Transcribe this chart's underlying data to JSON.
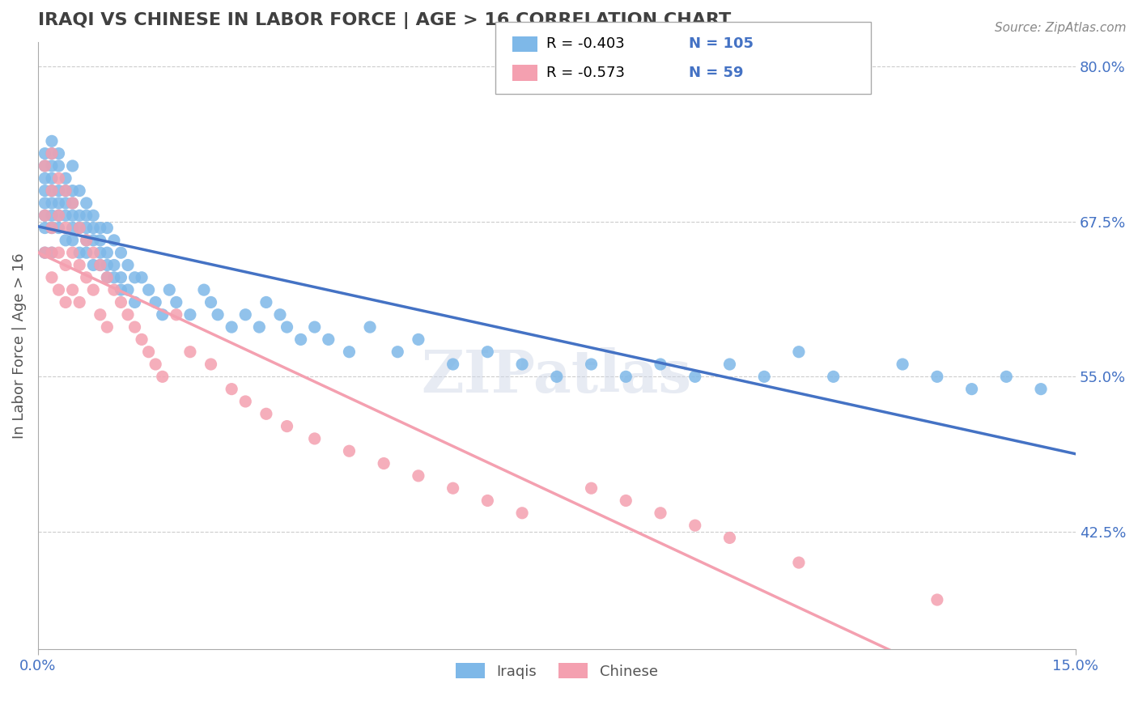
{
  "title": "IRAQI VS CHINESE IN LABOR FORCE | AGE > 16 CORRELATION CHART",
  "source_text": "Source: ZipAtlas.com",
  "xlabel_bottom": "",
  "ylabel": "In Labor Force | Age > 16",
  "x_min": 0.0,
  "x_max": 0.15,
  "y_min": 0.33,
  "y_max": 0.82,
  "x_ticks": [
    0.0,
    0.15
  ],
  "x_tick_labels": [
    "0.0%",
    "15.0%"
  ],
  "y_ticks": [
    0.425,
    0.55,
    0.675,
    0.8
  ],
  "y_tick_labels": [
    "42.5%",
    "55.0%",
    "67.5%",
    "80.0%"
  ],
  "legend_R1": "-0.403",
  "legend_N1": "105",
  "legend_R2": "-0.573",
  "legend_N2": "59",
  "color_iraqis": "#7EB8E8",
  "color_chinese": "#F4A0B0",
  "color_line_iraqis": "#4472C4",
  "color_line_chinese": "#F4A0B0",
  "color_axis_labels": "#4472C4",
  "color_title": "#404040",
  "iraqis_x": [
    0.001,
    0.001,
    0.001,
    0.001,
    0.001,
    0.001,
    0.001,
    0.001,
    0.002,
    0.002,
    0.002,
    0.002,
    0.002,
    0.002,
    0.002,
    0.002,
    0.002,
    0.003,
    0.003,
    0.003,
    0.003,
    0.003,
    0.003,
    0.004,
    0.004,
    0.004,
    0.004,
    0.004,
    0.005,
    0.005,
    0.005,
    0.005,
    0.005,
    0.005,
    0.006,
    0.006,
    0.006,
    0.006,
    0.007,
    0.007,
    0.007,
    0.007,
    0.007,
    0.008,
    0.008,
    0.008,
    0.008,
    0.009,
    0.009,
    0.009,
    0.009,
    0.01,
    0.01,
    0.01,
    0.01,
    0.011,
    0.011,
    0.011,
    0.012,
    0.012,
    0.012,
    0.013,
    0.013,
    0.014,
    0.014,
    0.015,
    0.016,
    0.017,
    0.018,
    0.019,
    0.02,
    0.022,
    0.024,
    0.025,
    0.026,
    0.028,
    0.03,
    0.032,
    0.033,
    0.035,
    0.036,
    0.038,
    0.04,
    0.042,
    0.045,
    0.048,
    0.052,
    0.055,
    0.06,
    0.065,
    0.07,
    0.075,
    0.08,
    0.085,
    0.09,
    0.095,
    0.1,
    0.105,
    0.11,
    0.115,
    0.125,
    0.13,
    0.135,
    0.14,
    0.145
  ],
  "iraqis_y": [
    0.72,
    0.7,
    0.68,
    0.65,
    0.73,
    0.69,
    0.71,
    0.67,
    0.74,
    0.72,
    0.69,
    0.68,
    0.71,
    0.7,
    0.73,
    0.67,
    0.65,
    0.73,
    0.7,
    0.68,
    0.72,
    0.69,
    0.67,
    0.71,
    0.69,
    0.7,
    0.68,
    0.66,
    0.72,
    0.7,
    0.68,
    0.67,
    0.66,
    0.69,
    0.7,
    0.68,
    0.67,
    0.65,
    0.69,
    0.67,
    0.68,
    0.66,
    0.65,
    0.68,
    0.67,
    0.66,
    0.64,
    0.67,
    0.65,
    0.66,
    0.64,
    0.67,
    0.65,
    0.64,
    0.63,
    0.66,
    0.64,
    0.63,
    0.65,
    0.63,
    0.62,
    0.64,
    0.62,
    0.63,
    0.61,
    0.63,
    0.62,
    0.61,
    0.6,
    0.62,
    0.61,
    0.6,
    0.62,
    0.61,
    0.6,
    0.59,
    0.6,
    0.59,
    0.61,
    0.6,
    0.59,
    0.58,
    0.59,
    0.58,
    0.57,
    0.59,
    0.57,
    0.58,
    0.56,
    0.57,
    0.56,
    0.55,
    0.56,
    0.55,
    0.56,
    0.55,
    0.56,
    0.55,
    0.57,
    0.55,
    0.56,
    0.55,
    0.54,
    0.55,
    0.54
  ],
  "chinese_x": [
    0.001,
    0.001,
    0.001,
    0.002,
    0.002,
    0.002,
    0.002,
    0.002,
    0.003,
    0.003,
    0.003,
    0.003,
    0.004,
    0.004,
    0.004,
    0.004,
    0.005,
    0.005,
    0.005,
    0.006,
    0.006,
    0.006,
    0.007,
    0.007,
    0.008,
    0.008,
    0.009,
    0.009,
    0.01,
    0.01,
    0.011,
    0.012,
    0.013,
    0.014,
    0.015,
    0.016,
    0.017,
    0.018,
    0.02,
    0.022,
    0.025,
    0.028,
    0.03,
    0.033,
    0.036,
    0.04,
    0.045,
    0.05,
    0.055,
    0.06,
    0.065,
    0.07,
    0.08,
    0.085,
    0.09,
    0.095,
    0.1,
    0.11,
    0.13
  ],
  "chinese_y": [
    0.72,
    0.68,
    0.65,
    0.73,
    0.7,
    0.67,
    0.65,
    0.63,
    0.71,
    0.68,
    0.65,
    0.62,
    0.7,
    0.67,
    0.64,
    0.61,
    0.69,
    0.65,
    0.62,
    0.67,
    0.64,
    0.61,
    0.66,
    0.63,
    0.65,
    0.62,
    0.64,
    0.6,
    0.63,
    0.59,
    0.62,
    0.61,
    0.6,
    0.59,
    0.58,
    0.57,
    0.56,
    0.55,
    0.6,
    0.57,
    0.56,
    0.54,
    0.53,
    0.52,
    0.51,
    0.5,
    0.49,
    0.48,
    0.47,
    0.46,
    0.45,
    0.44,
    0.46,
    0.45,
    0.44,
    0.43,
    0.42,
    0.4,
    0.37
  ],
  "background_color": "#FFFFFF",
  "grid_color": "#CCCCCC",
  "watermark_text": "ZIPatlas",
  "watermark_color": "#D0D8E8"
}
